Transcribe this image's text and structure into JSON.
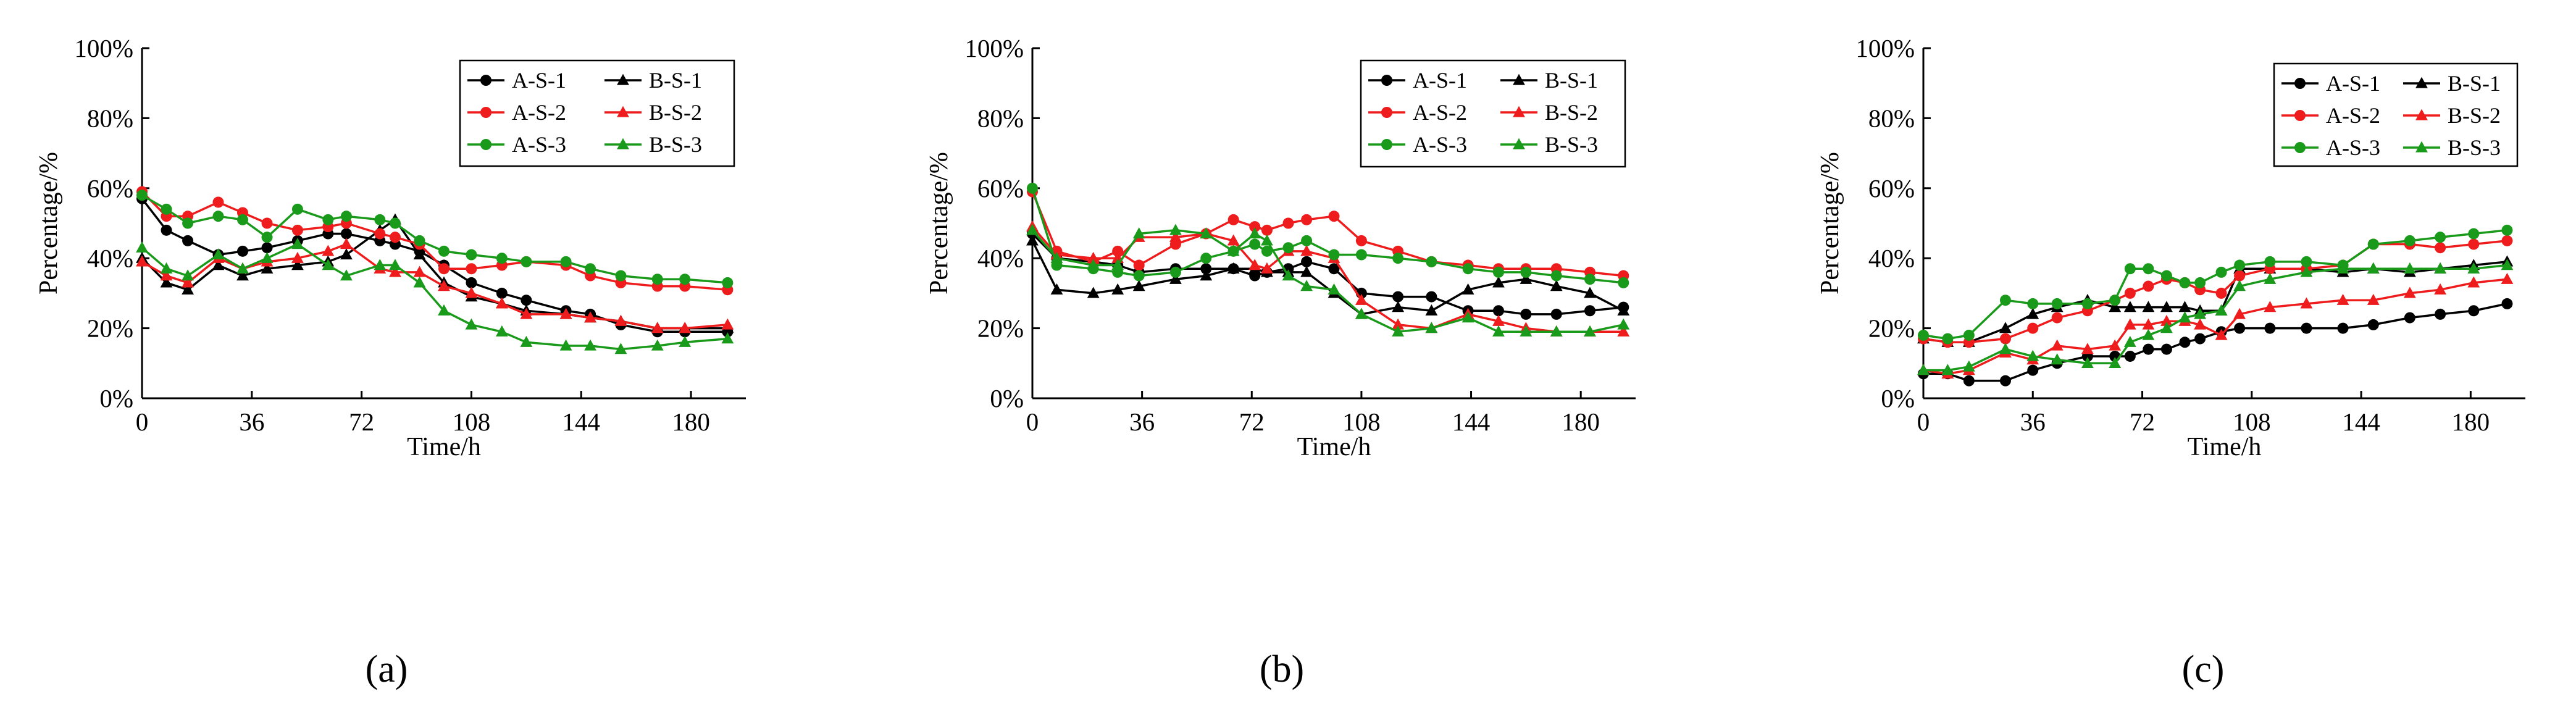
{
  "figure": {
    "panel_labels": [
      "(a)",
      "(b)",
      "(c)"
    ],
    "x_axis_title": "Time/h",
    "y_axis_title": "Percentage/%"
  },
  "legend": [
    {
      "name": "A-S-1",
      "color": "#000000",
      "marker": "circle"
    },
    {
      "name": "B-S-1",
      "color": "#000000",
      "marker": "triangle"
    },
    {
      "name": "A-S-2",
      "color": "#ee1c1c",
      "marker": "circle"
    },
    {
      "name": "B-S-2",
      "color": "#ee1c1c",
      "marker": "triangle"
    },
    {
      "name": "A-S-3",
      "color": "#1a9a1a",
      "marker": "circle"
    },
    {
      "name": "B-S-3",
      "color": "#1a9a1a",
      "marker": "triangle"
    }
  ],
  "chart_data": [
    {
      "type": "line",
      "title": "(a)",
      "xlabel": "Time/h",
      "ylabel": "Percentage/%",
      "xlim": [
        0,
        198
      ],
      "ylim": [
        0,
        100
      ],
      "xticks": [
        0,
        36,
        72,
        108,
        144,
        180
      ],
      "yticks": [
        0,
        20,
        40,
        60,
        80,
        100
      ],
      "ytick_labels": [
        "0%",
        "20%",
        "40%",
        "60%",
        "80%",
        "100%"
      ],
      "x": [
        0,
        8,
        15,
        25,
        33,
        41,
        51,
        61,
        67,
        78,
        83,
        91,
        99,
        108,
        118,
        126,
        139,
        147,
        157,
        169,
        178,
        192
      ],
      "series": [
        {
          "name": "A-S-1",
          "color": "#000000",
          "marker": "circle",
          "values": [
            57,
            48,
            45,
            41,
            42,
            43,
            45,
            47,
            47,
            45,
            44,
            42,
            38,
            33,
            30,
            28,
            25,
            24,
            21,
            19,
            19,
            19
          ]
        },
        {
          "name": "B-S-1",
          "color": "#000000",
          "marker": "triangle",
          "values": [
            40,
            33,
            31,
            38,
            35,
            37,
            38,
            39,
            41,
            48,
            51,
            41,
            33,
            29,
            27,
            25,
            24,
            23,
            22,
            20,
            20,
            20
          ]
        },
        {
          "name": "A-S-2",
          "color": "#ee1c1c",
          "marker": "circle",
          "values": [
            59,
            52,
            52,
            56,
            53,
            50,
            48,
            49,
            50,
            47,
            46,
            44,
            37,
            37,
            38,
            39,
            38,
            35,
            33,
            32,
            32,
            31
          ]
        },
        {
          "name": "B-S-2",
          "color": "#ee1c1c",
          "marker": "triangle",
          "values": [
            39,
            35,
            33,
            40,
            37,
            39,
            40,
            42,
            44,
            37,
            36,
            36,
            32,
            30,
            27,
            24,
            24,
            23,
            22,
            20,
            20,
            21
          ]
        },
        {
          "name": "A-S-3",
          "color": "#1a9a1a",
          "marker": "circle",
          "values": [
            58,
            54,
            50,
            52,
            51,
            46,
            54,
            51,
            52,
            51,
            50,
            45,
            42,
            41,
            40,
            39,
            39,
            37,
            35,
            34,
            34,
            33
          ]
        },
        {
          "name": "B-S-3",
          "color": "#1a9a1a",
          "marker": "triangle",
          "values": [
            43,
            37,
            35,
            41,
            37,
            40,
            44,
            38,
            35,
            38,
            38,
            33,
            25,
            21,
            19,
            16,
            15,
            15,
            14,
            15,
            16,
            17
          ]
        }
      ]
    },
    {
      "type": "line",
      "title": "(b)",
      "xlabel": "Time/h",
      "ylabel": "Percentage/%",
      "xlim": [
        0,
        198
      ],
      "ylim": [
        0,
        100
      ],
      "xticks": [
        0,
        36,
        72,
        108,
        144,
        180
      ],
      "yticks": [
        0,
        20,
        40,
        60,
        80,
        100
      ],
      "ytick_labels": [
        "0%",
        "20%",
        "40%",
        "60%",
        "80%",
        "100%"
      ],
      "x": [
        0,
        8,
        20,
        28,
        35,
        47,
        57,
        66,
        73,
        77,
        84,
        90,
        99,
        108,
        120,
        131,
        143,
        153,
        162,
        172,
        183,
        194
      ],
      "series": [
        {
          "name": "A-S-1",
          "color": "#000000",
          "marker": "circle",
          "values": [
            47,
            40,
            39,
            38,
            36,
            37,
            37,
            37,
            35,
            36,
            37,
            39,
            37,
            30,
            29,
            29,
            25,
            25,
            24,
            24,
            25,
            26
          ]
        },
        {
          "name": "B-S-1",
          "color": "#000000",
          "marker": "triangle",
          "values": [
            45,
            31,
            30,
            31,
            32,
            34,
            35,
            37,
            37,
            36,
            36,
            36,
            30,
            24,
            26,
            25,
            31,
            33,
            34,
            32,
            30,
            25
          ]
        },
        {
          "name": "A-S-2",
          "color": "#ee1c1c",
          "marker": "circle",
          "values": [
            59,
            42,
            39,
            42,
            38,
            44,
            47,
            51,
            49,
            48,
            50,
            51,
            52,
            45,
            42,
            39,
            38,
            37,
            37,
            37,
            36,
            35
          ]
        },
        {
          "name": "B-S-2",
          "color": "#ee1c1c",
          "marker": "triangle",
          "values": [
            49,
            41,
            40,
            40,
            46,
            46,
            47,
            45,
            38,
            37,
            42,
            42,
            40,
            28,
            21,
            20,
            24,
            22,
            20,
            19,
            19,
            19
          ]
        },
        {
          "name": "A-S-3",
          "color": "#1a9a1a",
          "marker": "circle",
          "values": [
            60,
            38,
            37,
            36,
            35,
            36,
            40,
            42,
            44,
            42,
            43,
            45,
            41,
            41,
            40,
            39,
            37,
            36,
            36,
            35,
            34,
            33
          ]
        },
        {
          "name": "B-S-3",
          "color": "#1a9a1a",
          "marker": "triangle",
          "values": [
            48,
            40,
            38,
            38,
            47,
            48,
            47,
            42,
            47,
            45,
            35,
            32,
            31,
            24,
            19,
            20,
            23,
            19,
            19,
            19,
            19,
            21
          ]
        }
      ]
    },
    {
      "type": "line",
      "title": "(c)",
      "xlabel": "Time/h",
      "ylabel": "Percentage/%",
      "xlim": [
        0,
        198
      ],
      "ylim": [
        0,
        100
      ],
      "xticks": [
        0,
        36,
        72,
        108,
        144,
        180
      ],
      "yticks": [
        0,
        20,
        40,
        60,
        80,
        100
      ],
      "ytick_labels": [
        "0%",
        "20%",
        "40%",
        "60%",
        "80%",
        "100%"
      ],
      "x": [
        0,
        8,
        15,
        27,
        36,
        44,
        54,
        63,
        68,
        74,
        80,
        86,
        91,
        98,
        104,
        114,
        126,
        138,
        148,
        160,
        170,
        181,
        192
      ],
      "series": [
        {
          "name": "A-S-1",
          "color": "#000000",
          "marker": "circle",
          "values": [
            7,
            7,
            5,
            5,
            8,
            10,
            12,
            12,
            12,
            14,
            14,
            16,
            17,
            19,
            20,
            20,
            20,
            20,
            21,
            23,
            24,
            25,
            27
          ]
        },
        {
          "name": "B-S-1",
          "color": "#000000",
          "marker": "triangle",
          "values": [
            17,
            16,
            16,
            20,
            24,
            26,
            28,
            26,
            26,
            26,
            26,
            26,
            25,
            25,
            37,
            37,
            37,
            36,
            37,
            36,
            37,
            38,
            39
          ]
        },
        {
          "name": "A-S-2",
          "color": "#ee1c1c",
          "marker": "circle",
          "values": [
            17,
            16,
            16,
            17,
            20,
            23,
            25,
            28,
            30,
            32,
            34,
            33,
            31,
            30,
            35,
            37,
            37,
            38,
            44,
            44,
            43,
            44,
            45
          ]
        },
        {
          "name": "B-S-2",
          "color": "#ee1c1c",
          "marker": "triangle",
          "values": [
            8,
            7,
            8,
            13,
            11,
            15,
            14,
            15,
            21,
            21,
            22,
            22,
            21,
            18,
            24,
            26,
            27,
            28,
            28,
            30,
            31,
            33,
            34
          ]
        },
        {
          "name": "A-S-3",
          "color": "#1a9a1a",
          "marker": "circle",
          "values": [
            18,
            17,
            18,
            28,
            27,
            27,
            27,
            28,
            37,
            37,
            35,
            33,
            33,
            36,
            38,
            39,
            39,
            38,
            44,
            45,
            46,
            47,
            48
          ]
        },
        {
          "name": "B-S-3",
          "color": "#1a9a1a",
          "marker": "triangle",
          "values": [
            8,
            8,
            9,
            14,
            12,
            11,
            10,
            10,
            16,
            18,
            20,
            23,
            24,
            25,
            32,
            34,
            36,
            37,
            37,
            37,
            37,
            37,
            38
          ]
        }
      ]
    }
  ]
}
